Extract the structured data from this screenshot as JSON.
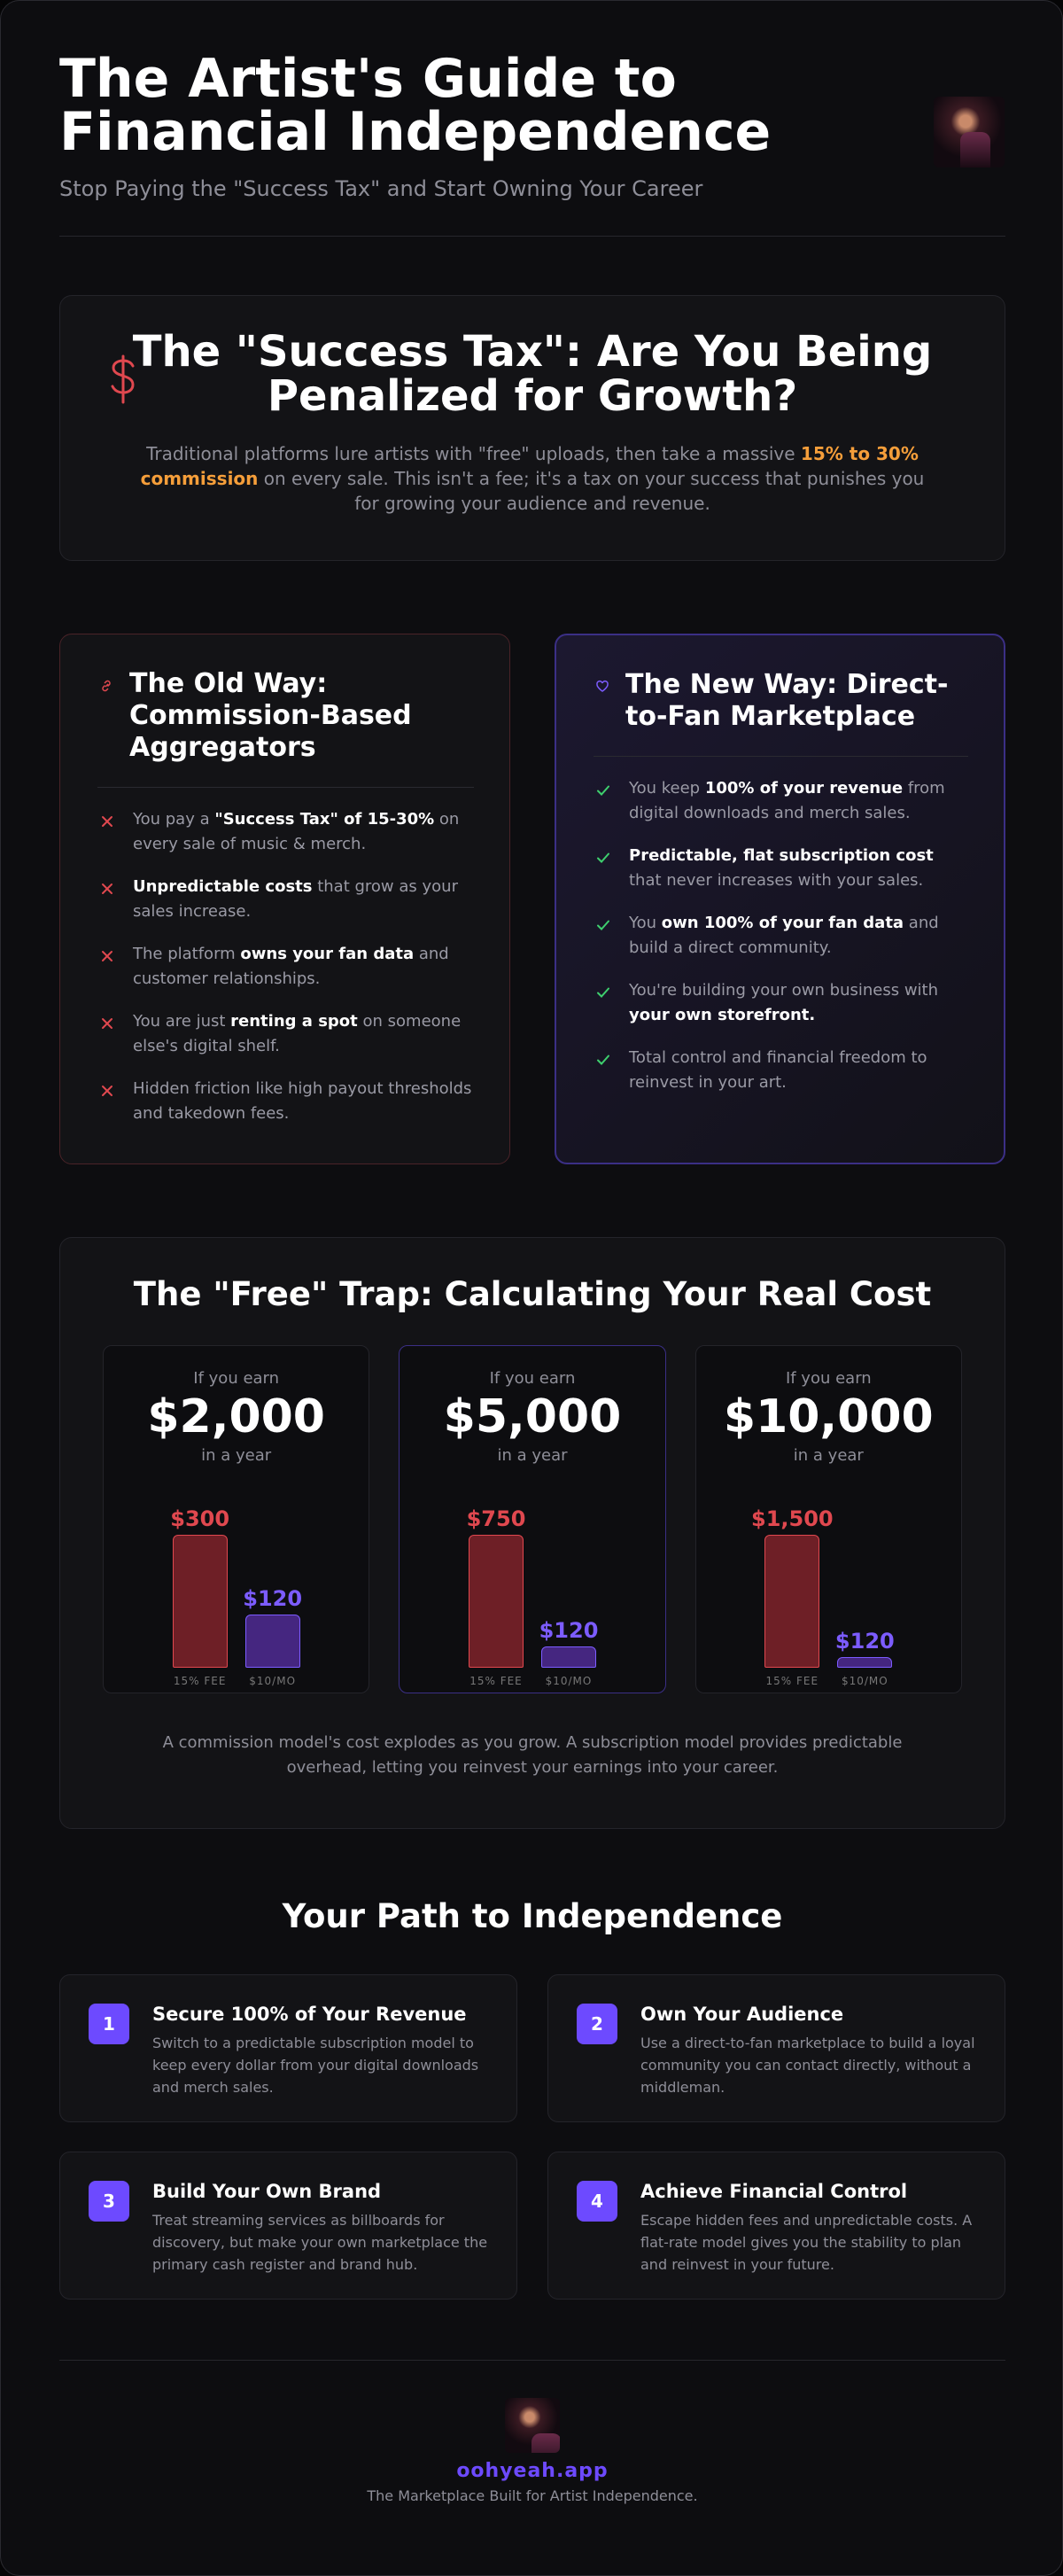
{
  "header": {
    "title": "The Artist's Guide to Financial Independence",
    "subtitle": "Stop Paying the \"Success Tax\" and Start Owning Your Career"
  },
  "success_tax": {
    "title": "The \"Success Tax\": Are You Being Penalized for Growth?",
    "text": [
      {
        "text": "Traditional platforms lure artists with \"free\" uploads, then take a massive "
      },
      {
        "text": "15% to 30% commission",
        "highlight": true
      },
      {
        "text": " on every sale. This isn't a fee; it's a tax on your success that punishes you for growing your audience and revenue."
      }
    ]
  },
  "old_way": {
    "title": "The Old Way: Commission-Based Aggregators",
    "items": [
      [
        {
          "text": "You pay a "
        },
        {
          "text": "\"Success Tax\" of 15-30%",
          "bold": true
        },
        {
          "text": " on every sale of music & merch."
        }
      ],
      [
        {
          "text": "Unpredictable costs",
          "bold": true
        },
        {
          "text": " that grow as your sales increase."
        }
      ],
      [
        {
          "text": "The platform "
        },
        {
          "text": "owns your fan data",
          "bold": true
        },
        {
          "text": " and customer relationships."
        }
      ],
      [
        {
          "text": "You are just "
        },
        {
          "text": "renting a spot",
          "bold": true
        },
        {
          "text": " on someone else's digital shelf."
        }
      ],
      [
        {
          "text": "Hidden friction like high payout thresholds and takedown fees."
        }
      ]
    ]
  },
  "new_way": {
    "title": "The New Way: Direct-to-Fan Marketplace",
    "items": [
      [
        {
          "text": "You keep "
        },
        {
          "text": "100% of your revenue",
          "bold": true
        },
        {
          "text": " from digital downloads and merch sales."
        }
      ],
      [
        {
          "text": "Predictable, flat subscription cost",
          "bold": true
        },
        {
          "text": " that never increases with your sales."
        }
      ],
      [
        {
          "text": "You "
        },
        {
          "text": "own 100% of your fan data",
          "bold": true
        },
        {
          "text": " and build a direct community."
        }
      ],
      [
        {
          "text": "You're building your own business with "
        },
        {
          "text": "your own storefront.",
          "bold": true
        }
      ],
      [
        {
          "text": "Total control and financial freedom to reinvest in your art."
        }
      ]
    ]
  },
  "free_trap": {
    "title": "The \"Free\" Trap: Calculating Your Real Cost",
    "cards": [
      {
        "prefix": "If you earn",
        "amount": "$2,000",
        "suffix": "in a year",
        "fee": 300,
        "fee_label": "$300",
        "subscription": 120,
        "subscription_label": "$120",
        "fee_caption": "15% FEE",
        "subscription_caption": "$10/MO",
        "featured": false
      },
      {
        "prefix": "If you earn",
        "amount": "$5,000",
        "suffix": "in a year",
        "fee": 750,
        "fee_label": "$750",
        "subscription": 120,
        "subscription_label": "$120",
        "fee_caption": "15% FEE",
        "subscription_caption": "$10/MO",
        "featured": true
      },
      {
        "prefix": "If you earn",
        "amount": "$10,000",
        "suffix": "in a year",
        "fee": 1500,
        "fee_label": "$1,500",
        "subscription": 120,
        "subscription_label": "$120",
        "fee_caption": "15% FEE",
        "subscription_caption": "$10/MO",
        "featured": false
      }
    ],
    "fee_color": "#e0484f",
    "subscription_color": "#7c5cff",
    "note": "A commission model's cost explodes as you grow. A subscription model provides predictable overhead, letting you reinvest your earnings into your career."
  },
  "path": {
    "title": "Your Path to Independence",
    "steps": [
      {
        "number": 1,
        "title": "Secure 100% of Your Revenue",
        "text": "Switch to a predictable subscription model to keep every dollar from your digital downloads and merch sales."
      },
      {
        "number": 2,
        "title": "Own Your Audience",
        "text": "Use a direct-to-fan marketplace to build a loyal community you can contact directly, without a middleman."
      },
      {
        "number": 3,
        "title": "Build Your Own Brand",
        "text": "Treat streaming services as billboards for discovery, but make your own marketplace the primary cash register and brand hub."
      },
      {
        "number": 4,
        "title": "Achieve Financial Control",
        "text": "Escape hidden fees and unpredictable costs. A flat-rate model gives you the stability to plan and reinvest in your future."
      }
    ]
  },
  "footer": {
    "brand": "oohyeah.app",
    "tagline": "The Marketplace Built for Artist Independence."
  }
}
